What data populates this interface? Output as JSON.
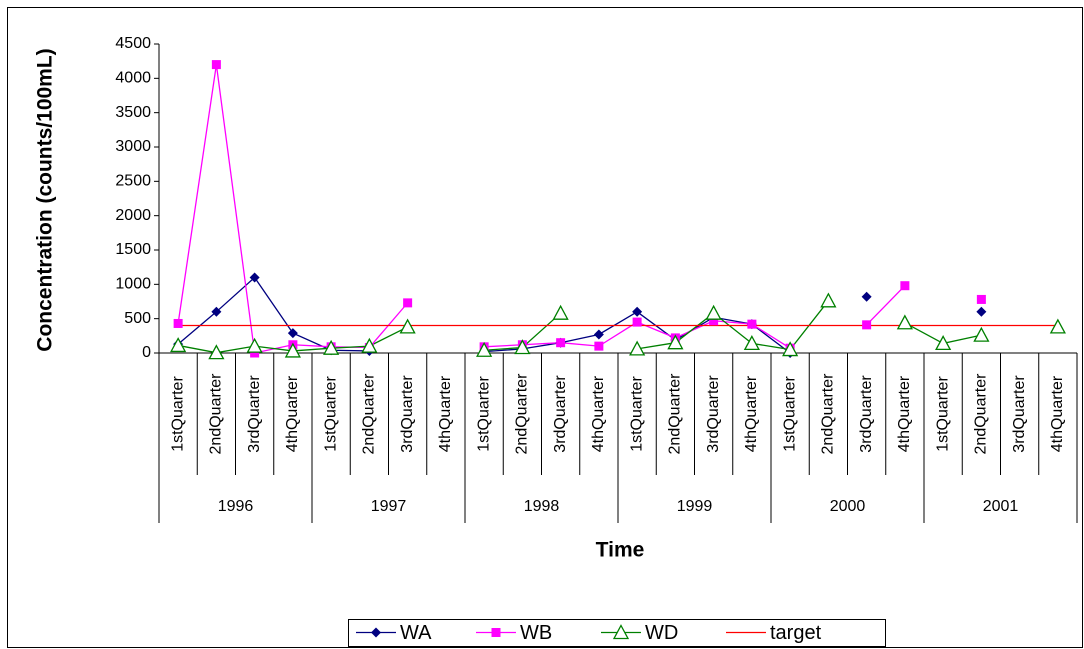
{
  "chart_data": {
    "type": "line",
    "xlabel": "Time",
    "ylabel": "Concentration (counts/100mL)",
    "categories": [
      "1stQuarter",
      "2ndQuarter",
      "3rdQuarter",
      "4thQuarter",
      "1stQuarter",
      "2ndQuarter",
      "3rdQuarter",
      "4thQuarter",
      "1stQuarter",
      "2ndQuarter",
      "3rdQuarter",
      "4thQuarter",
      "1stQuarter",
      "2ndQuarter",
      "3rdQuarter",
      "4thQuarter",
      "1stQuarter",
      "2ndQuarter",
      "3rdQuarter",
      "4thQuarter",
      "1stQuarter",
      "2ndQuarter",
      "3rdQuarter",
      "4thQuarter"
    ],
    "category_groups": [
      "1996",
      "1997",
      "1998",
      "1999",
      "2000",
      "2001"
    ],
    "ylim": [
      0,
      4500
    ],
    "yticks": [
      0,
      500,
      1000,
      1500,
      2000,
      2500,
      3000,
      3500,
      4000,
      4500
    ],
    "legend": "bottom",
    "series": [
      {
        "name": "WA",
        "color": "#000080",
        "marker": "diamond",
        "values": [
          130,
          600,
          1100,
          290,
          40,
          30,
          null,
          null,
          20,
          60,
          150,
          270,
          600,
          190,
          520,
          420,
          0,
          null,
          820,
          null,
          null,
          600,
          null,
          null
        ]
      },
      {
        "name": "WB",
        "color": "#ff00ff",
        "marker": "square",
        "values": [
          430,
          4200,
          0,
          120,
          90,
          80,
          730,
          null,
          90,
          120,
          150,
          100,
          450,
          220,
          470,
          420,
          70,
          null,
          410,
          980,
          null,
          780,
          null,
          null
        ]
      },
      {
        "name": "WD",
        "color": "#008000",
        "marker": "triangle",
        "values": [
          110,
          5,
          100,
          30,
          70,
          100,
          380,
          null,
          40,
          80,
          580,
          null,
          60,
          150,
          580,
          140,
          50,
          760,
          null,
          440,
          140,
          260,
          null,
          380
        ]
      },
      {
        "name": "target",
        "color": "#ff0000",
        "marker": "none",
        "values": [
          400,
          400,
          400,
          400,
          400,
          400,
          400,
          400,
          400,
          400,
          400,
          400,
          400,
          400,
          400,
          400,
          400,
          400,
          400,
          400,
          400,
          400,
          400,
          400
        ]
      }
    ]
  }
}
